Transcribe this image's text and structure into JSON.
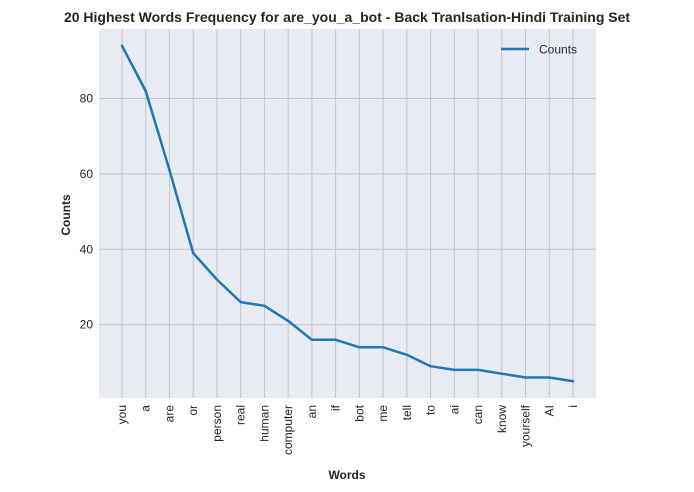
{
  "chart_data": {
    "type": "line",
    "title": "20 Highest Words Frequency for are_you_a_bot - Back Tranlsation-Hindi Training Set",
    "xlabel": "Words",
    "ylabel": "Counts",
    "categories": [
      "you",
      "a",
      "are",
      "or",
      "person",
      "real",
      "human",
      "computer",
      "an",
      "if",
      "bot",
      "me",
      "tell",
      "to",
      "ai",
      "can",
      "know",
      "yourself",
      "AI",
      "i"
    ],
    "series": [
      {
        "name": "Counts",
        "values": [
          94,
          82,
          61,
          39,
          32,
          26,
          25,
          21,
          16,
          16,
          14,
          14,
          12,
          9,
          8,
          8,
          7,
          6,
          6,
          5
        ],
        "color": "#1f77b4"
      }
    ],
    "ylim": [
      0.55,
      98.45
    ],
    "yticks": [
      20,
      40,
      60,
      80
    ],
    "grid": true,
    "legend": "top-right",
    "background": "#e9ebf3",
    "grid_color": "#c3c5c9"
  }
}
